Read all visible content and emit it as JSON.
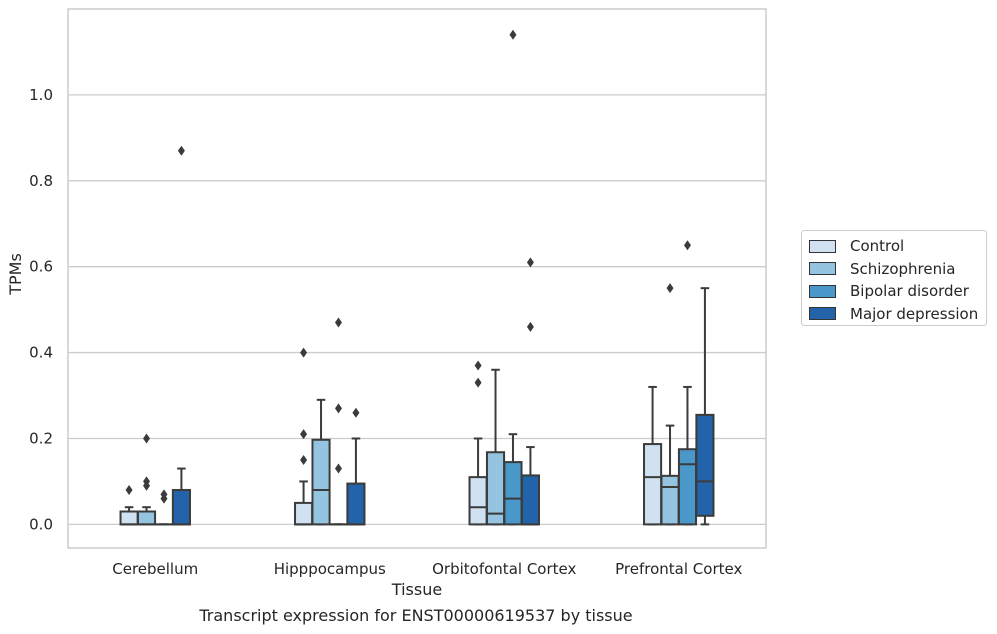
{
  "chart_data": {
    "type": "box",
    "xlabel": "Tissue",
    "ylabel": "TPMs",
    "caption": "Transcript expression for ENST00000619537 by tissue",
    "ylim": [
      -0.055,
      1.2
    ],
    "yticks": [
      "0.0",
      "0.2",
      "0.4",
      "0.6",
      "0.8",
      "1.0"
    ],
    "ytick_values": [
      0.0,
      0.2,
      0.4,
      0.6,
      0.8,
      1.0
    ],
    "grid": true,
    "legend_position": "right-outside",
    "categories": [
      "Cerebellum",
      "Hipppocampus",
      "Orbitofontal Cortex",
      "Prefrontal Cortex"
    ],
    "series": [
      {
        "name": "Control",
        "color": "#d0e1f2",
        "boxes": [
          {
            "q1": 0.0,
            "median": 0.0,
            "q3": 0.03,
            "whisker_low": 0.0,
            "whisker_high": 0.04,
            "outliers": [
              0.08
            ]
          },
          {
            "q1": 0.0,
            "median": 0.0,
            "q3": 0.05,
            "whisker_low": 0.0,
            "whisker_high": 0.1,
            "outliers": [
              0.15,
              0.21,
              0.4
            ]
          },
          {
            "q1": 0.0,
            "median": 0.04,
            "q3": 0.11,
            "whisker_low": 0.0,
            "whisker_high": 0.2,
            "outliers": [
              0.33,
              0.37
            ]
          },
          {
            "q1": 0.0,
            "median": 0.11,
            "q3": 0.187,
            "whisker_low": 0.0,
            "whisker_high": 0.32,
            "outliers": []
          }
        ]
      },
      {
        "name": "Schizophrenia",
        "color": "#94c4df",
        "boxes": [
          {
            "q1": 0.0,
            "median": 0.0,
            "q3": 0.03,
            "whisker_low": 0.0,
            "whisker_high": 0.04,
            "outliers": [
              0.09,
              0.1,
              0.2
            ]
          },
          {
            "q1": 0.0,
            "median": 0.08,
            "q3": 0.197,
            "whisker_low": 0.0,
            "whisker_high": 0.29,
            "outliers": []
          },
          {
            "q1": 0.0,
            "median": 0.025,
            "q3": 0.168,
            "whisker_low": 0.0,
            "whisker_high": 0.36,
            "outliers": []
          },
          {
            "q1": 0.0,
            "median": 0.087,
            "q3": 0.113,
            "whisker_low": 0.0,
            "whisker_high": 0.23,
            "outliers": [
              0.55
            ]
          }
        ]
      },
      {
        "name": "Bipolar disorder",
        "color": "#4a98c9",
        "boxes": [
          {
            "q1": 0.0,
            "median": 0.0,
            "q3": 0.0,
            "whisker_low": 0.0,
            "whisker_high": 0.0,
            "outliers": [
              0.06,
              0.07
            ]
          },
          {
            "q1": 0.0,
            "median": 0.0,
            "q3": 0.0,
            "whisker_low": 0.0,
            "whisker_high": 0.0,
            "outliers": [
              0.13,
              0.27,
              0.47
            ]
          },
          {
            "q1": 0.0,
            "median": 0.06,
            "q3": 0.145,
            "whisker_low": 0.0,
            "whisker_high": 0.21,
            "outliers": [
              1.14
            ]
          },
          {
            "q1": 0.0,
            "median": 0.14,
            "q3": 0.175,
            "whisker_low": 0.0,
            "whisker_high": 0.32,
            "outliers": [
              0.65
            ]
          }
        ]
      },
      {
        "name": "Major depression",
        "color": "#2363a9",
        "boxes": [
          {
            "q1": 0.0,
            "median": 0.0,
            "q3": 0.08,
            "whisker_low": 0.0,
            "whisker_high": 0.13,
            "outliers": [
              0.87
            ]
          },
          {
            "q1": 0.0,
            "median": 0.0,
            "q3": 0.095,
            "whisker_low": 0.0,
            "whisker_high": 0.2,
            "outliers": [
              0.26
            ]
          },
          {
            "q1": 0.0,
            "median": 0.0,
            "q3": 0.114,
            "whisker_low": 0.0,
            "whisker_high": 0.18,
            "outliers": [
              0.46,
              0.61
            ]
          },
          {
            "q1": 0.02,
            "median": 0.1,
            "q3": 0.255,
            "whisker_low": 0.0,
            "whisker_high": 0.55,
            "outliers": []
          }
        ]
      }
    ]
  }
}
